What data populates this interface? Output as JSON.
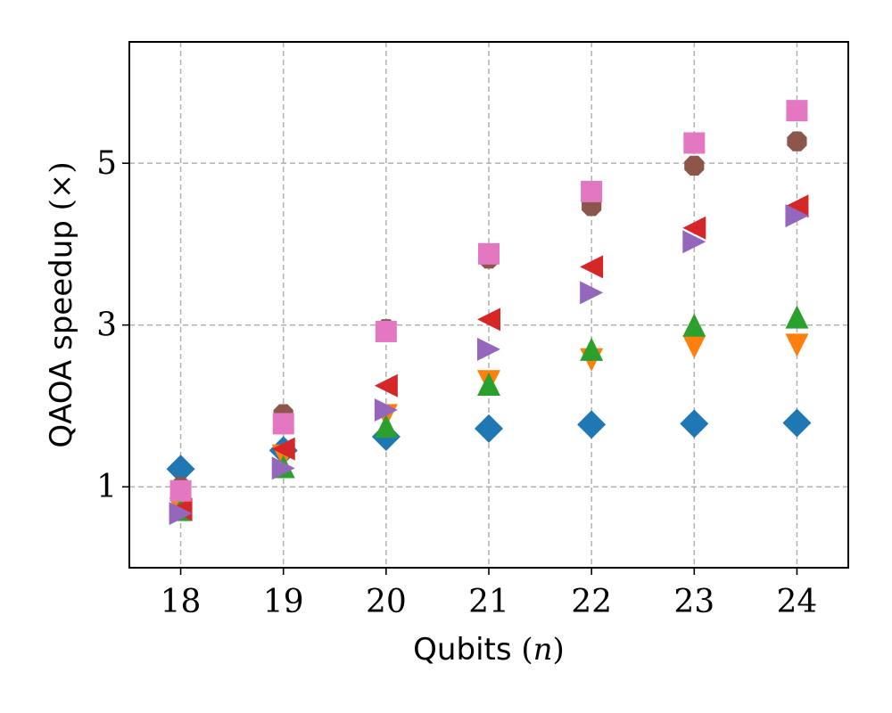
{
  "chart_data": {
    "type": "scatter",
    "title": "",
    "xlabel": {
      "text": "Qubits ",
      "var": "n"
    },
    "ylabel": {
      "text": "QAOA speedup ",
      "symbol": "×"
    },
    "x": [
      18,
      19,
      20,
      21,
      22,
      23,
      24
    ],
    "xticks": [
      18,
      19,
      20,
      21,
      22,
      23,
      24
    ],
    "yticks": [
      1,
      3,
      5
    ],
    "xlim": [
      17.5,
      24.5
    ],
    "ylim": [
      0,
      6.5
    ],
    "grid": true,
    "series": [
      {
        "marker": "diamond",
        "color": "#1f77b4",
        "values": [
          1.22,
          1.45,
          1.62,
          1.72,
          1.77,
          1.78,
          1.79
        ]
      },
      {
        "marker": "triangle-down",
        "color": "#ff7f0e",
        "values": [
          0.72,
          1.38,
          1.88,
          2.3,
          2.57,
          2.73,
          2.75
        ]
      },
      {
        "marker": "triangle-up",
        "color": "#2ca02c",
        "values": [
          0.72,
          1.25,
          1.75,
          2.27,
          2.7,
          3.0,
          3.1
        ]
      },
      {
        "marker": "triangle-left",
        "color": "#d62728",
        "values": [
          0.72,
          1.47,
          2.25,
          3.07,
          3.72,
          4.2,
          4.47
        ]
      },
      {
        "marker": "triangle-right",
        "color": "#9467bd",
        "values": [
          0.67,
          1.23,
          1.95,
          2.7,
          3.4,
          4.03,
          4.35
        ]
      },
      {
        "marker": "octagon",
        "color": "#8c564b",
        "values": [
          1.0,
          1.9,
          2.95,
          3.82,
          4.47,
          4.97,
          5.27
        ]
      },
      {
        "marker": "square",
        "color": "#e377c2",
        "values": [
          0.95,
          1.78,
          2.92,
          3.88,
          4.65,
          5.25,
          5.65
        ]
      }
    ]
  }
}
